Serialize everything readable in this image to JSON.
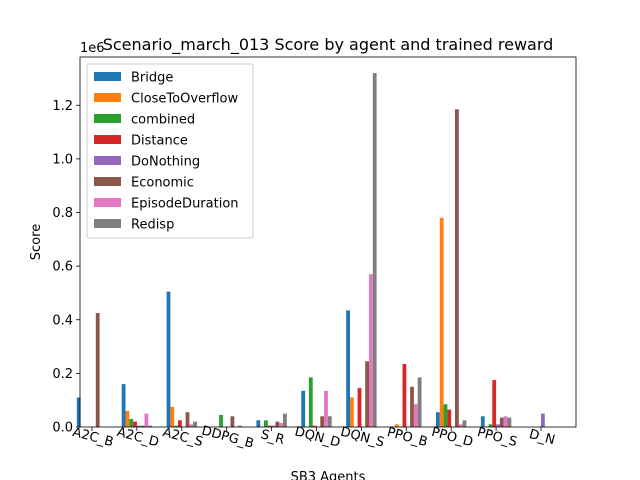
{
  "chart_data": {
    "type": "bar",
    "title": "Scenario_march_013 Score by agent and trained reward",
    "xlabel": "SB3 Agents",
    "ylabel": "Score",
    "offset_label": "1e6",
    "ylim": [
      0,
      1.38
    ],
    "yticks": [
      "0.0",
      "0.2",
      "0.4",
      "0.6",
      "0.8",
      "1.0",
      "1.2"
    ],
    "grid": false,
    "legend_position": "upper-left",
    "categories": [
      "A2C_B",
      "A2C_D",
      "A2C_S",
      "DDPG_B",
      "S_R",
      "DQN_D",
      "DQN_S",
      "PPO_B",
      "PPO_D",
      "PPO_S",
      "D_N"
    ],
    "series": [
      {
        "name": "Bridge",
        "color": "#1f77b4",
        "values": [
          0.11,
          0.16,
          0.505,
          0,
          0.025,
          0.135,
          0.435,
          0,
          0.055,
          0.04,
          0
        ]
      },
      {
        "name": "CloseToOverflow",
        "color": "#ff7f0e",
        "values": [
          0,
          0.06,
          0.075,
          0,
          0,
          0,
          0.11,
          0.01,
          0.78,
          0,
          0
        ]
      },
      {
        "name": "combined",
        "color": "#2ca02c",
        "values": [
          0,
          0.03,
          0.005,
          0.045,
          0.025,
          0.185,
          0,
          0,
          0.085,
          0.01,
          0
        ]
      },
      {
        "name": "Distance",
        "color": "#d62728",
        "values": [
          0,
          0.02,
          0.025,
          0,
          0.005,
          0.005,
          0.145,
          0.235,
          0.065,
          0.175,
          0
        ]
      },
      {
        "name": "DoNothing",
        "color": "#9467bd",
        "values": [
          0,
          0.005,
          0,
          0,
          0.005,
          0,
          0,
          0,
          0,
          0.01,
          0.05
        ]
      },
      {
        "name": "Economic",
        "color": "#8c564b",
        "values": [
          0.425,
          0.005,
          0.055,
          0.04,
          0.02,
          0.04,
          0.245,
          0.15,
          1.185,
          0.035,
          0
        ]
      },
      {
        "name": "EpisodeDuration",
        "color": "#e377c2",
        "values": [
          0,
          0.05,
          0.01,
          0,
          0.015,
          0.135,
          0.57,
          0.085,
          0.01,
          0.04,
          0
        ]
      },
      {
        "name": "Redisp",
        "color": "#7f7f7f",
        "values": [
          0,
          0.005,
          0.02,
          0.005,
          0.05,
          0.04,
          1.32,
          0.185,
          0.025,
          0.035,
          0
        ]
      }
    ]
  }
}
